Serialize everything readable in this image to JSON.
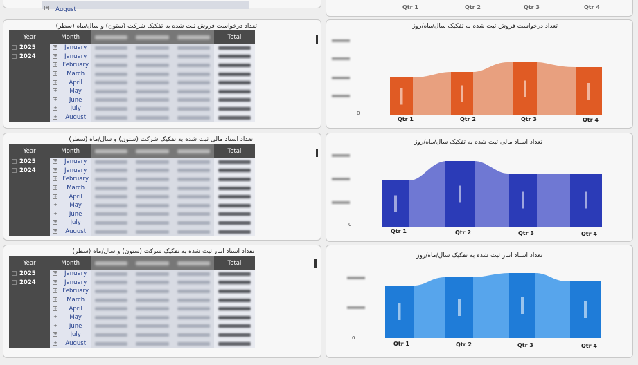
{
  "top_fragment": {
    "month_label": "August",
    "x_ticks": [
      "Qtr 1",
      "Qtr 2",
      "Qtr 3",
      "Qtr 4"
    ]
  },
  "colors": {
    "panel1_dark": "#e05b24",
    "panel1_light": "#e8a07f",
    "panel2_dark": "#2b3bb7",
    "panel2_light": "#6f78d3",
    "panel3_dark": "#1f7cd8",
    "panel3_light": "#57a5ec"
  },
  "panels": [
    {
      "table_title": "تعداد درخواست فروش ثبت شده به تفکیک شرکت (ستون) و سال/ماه (سطر)",
      "chart_title": "تعداد درخواست فروش ثبت شده به تفکیک سال/ماه/روز",
      "col_year": "Year",
      "col_month": "Month",
      "col_total": "Total",
      "years": [
        "2025",
        "2024"
      ],
      "months": [
        "January",
        "January",
        "February",
        "March",
        "April",
        "May",
        "June",
        "July",
        "August"
      ],
      "x_ticks": [
        "Qtr 1",
        "Qtr 2",
        "Qtr 3",
        "Qtr 4"
      ],
      "y_zero": "0"
    },
    {
      "table_title": "تعداد اسناد مالی ثبت شده به تفکیک شرکت (ستون) و سال/ماه (سطر)",
      "chart_title": "تعداد اسناد مالی ثبت شده به تفکیک سال/ماه/روز",
      "col_year": "Year",
      "col_month": "Month",
      "col_total": "Total",
      "years": [
        "2025",
        "2024"
      ],
      "months": [
        "January",
        "January",
        "February",
        "March",
        "April",
        "May",
        "June",
        "July",
        "August"
      ],
      "x_ticks": [
        "Qtr 1",
        "Qtr 2",
        "Qtr 3",
        "Qtr 4"
      ],
      "y_zero": "0"
    },
    {
      "table_title": "تعداد اسناد انبار ثبت شده به تفکیک شرکت (ستون) و سال/ماه (سطر)",
      "chart_title": "تعداد اسناد انبار ثبت شده به تفکیک سال/ماه/روز",
      "col_year": "Year",
      "col_month": "Month",
      "col_total": "Total",
      "years": [
        "2025",
        "2024"
      ],
      "months": [
        "January",
        "January",
        "February",
        "March",
        "April",
        "May",
        "June",
        "July",
        "August"
      ],
      "x_ticks": [
        "Qtr 1",
        "Qtr 2",
        "Qtr 3",
        "Qtr 4"
      ],
      "y_zero": "0"
    }
  ]
}
